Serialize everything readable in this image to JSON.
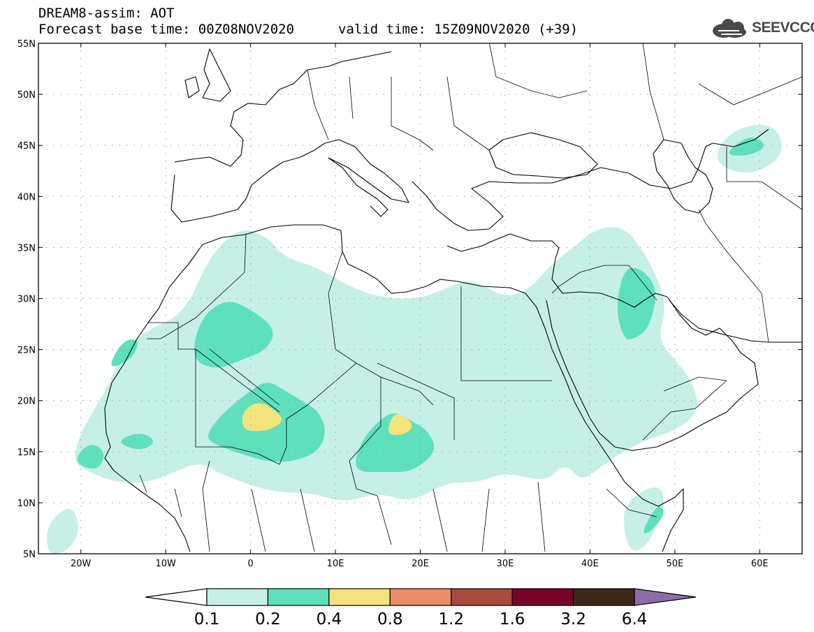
{
  "header": {
    "title": "DREAM8-assim: AOT",
    "base_time": "Forecast base time: 00Z08NOV2020",
    "valid_time": "valid time: 15Z09NOV2020 (+39)"
  },
  "logo": {
    "text": "SEEVCCC",
    "icon": "cloud-icon"
  },
  "map": {
    "lon_range": [
      -25,
      65
    ],
    "lat_range": [
      5,
      55
    ],
    "lat_ticks": [
      {
        "value": 55,
        "label": "55N"
      },
      {
        "value": 50,
        "label": "50N"
      },
      {
        "value": 45,
        "label": "45N"
      },
      {
        "value": 40,
        "label": "40N"
      },
      {
        "value": 35,
        "label": "35N"
      },
      {
        "value": 30,
        "label": "30N"
      },
      {
        "value": 25,
        "label": "25N"
      },
      {
        "value": 20,
        "label": "20N"
      },
      {
        "value": 15,
        "label": "15N"
      },
      {
        "value": 10,
        "label": "10N"
      },
      {
        "value": 5,
        "label": "5N"
      }
    ],
    "lon_ticks": [
      {
        "value": -20,
        "label": "20W"
      },
      {
        "value": -10,
        "label": "10W"
      },
      {
        "value": 0,
        "label": "0"
      },
      {
        "value": 10,
        "label": "10E"
      },
      {
        "value": 20,
        "label": "20E"
      },
      {
        "value": 30,
        "label": "30E"
      },
      {
        "value": 40,
        "label": "40E"
      },
      {
        "value": 50,
        "label": "50E"
      },
      {
        "value": 60,
        "label": "60E"
      }
    ],
    "grid": "dotted",
    "aot_regions": [
      {
        "level": "0.1-0.2",
        "color": "#c6f0e6",
        "outline": [
          [
            -20,
            17
          ],
          [
            -17,
            21
          ],
          [
            -15,
            25
          ],
          [
            -12,
            27
          ],
          [
            -9,
            28
          ],
          [
            -7,
            30
          ],
          [
            -6,
            32
          ],
          [
            -4,
            35
          ],
          [
            -1,
            37
          ],
          [
            2,
            36
          ],
          [
            4,
            34
          ],
          [
            8,
            33
          ],
          [
            12,
            31
          ],
          [
            16,
            30
          ],
          [
            20,
            30
          ],
          [
            23,
            31
          ],
          [
            26,
            32
          ],
          [
            30,
            30
          ],
          [
            33,
            31
          ],
          [
            35,
            33
          ],
          [
            38,
            35
          ],
          [
            41,
            37
          ],
          [
            44,
            37
          ],
          [
            46,
            35
          ],
          [
            48,
            32
          ],
          [
            49,
            29
          ],
          [
            48,
            26
          ],
          [
            50,
            24
          ],
          [
            52,
            22
          ],
          [
            53,
            19
          ],
          [
            50,
            17
          ],
          [
            46,
            16
          ],
          [
            42,
            14
          ],
          [
            39,
            12
          ],
          [
            37,
            14
          ],
          [
            35,
            12
          ],
          [
            30,
            13
          ],
          [
            27,
            12
          ],
          [
            23,
            12
          ],
          [
            19,
            10
          ],
          [
            15,
            11
          ],
          [
            11,
            10
          ],
          [
            7,
            11
          ],
          [
            3,
            11
          ],
          [
            -1,
            12
          ],
          [
            -4,
            13
          ],
          [
            -6,
            14
          ],
          [
            -9,
            13
          ],
          [
            -12,
            12
          ],
          [
            -16,
            12
          ],
          [
            -19,
            13
          ],
          [
            -21,
            14
          ]
        ]
      },
      {
        "level": "0.1-0.2",
        "color": "#c6f0e6",
        "outline": [
          [
            55,
            43
          ],
          [
            59,
            42
          ],
          [
            63,
            44
          ],
          [
            62,
            47
          ],
          [
            58,
            47
          ],
          [
            55,
            45
          ]
        ]
      },
      {
        "level": "0.1-0.2",
        "color": "#c6f0e6",
        "outline": [
          [
            -24,
            8
          ],
          [
            -21,
            10
          ],
          [
            -20,
            7
          ],
          [
            -22,
            5
          ],
          [
            -24,
            5
          ]
        ]
      },
      {
        "level": "0.1-0.2",
        "color": "#c6f0e6",
        "outline": [
          [
            44,
            10
          ],
          [
            48,
            12
          ],
          [
            49,
            10
          ],
          [
            47,
            6
          ],
          [
            45,
            5
          ],
          [
            44,
            7
          ]
        ]
      },
      {
        "level": "0.2-0.4",
        "color": "#5ee0bc",
        "outline": [
          [
            -7,
            24
          ],
          [
            -6,
            28
          ],
          [
            -3,
            30
          ],
          [
            0,
            29
          ],
          [
            3,
            27
          ],
          [
            2,
            25
          ],
          [
            -1,
            24
          ],
          [
            -4,
            23
          ]
        ]
      },
      {
        "level": "0.2-0.4",
        "color": "#5ee0bc",
        "outline": [
          [
            -5,
            17
          ],
          [
            -3,
            19
          ],
          [
            0,
            21
          ],
          [
            2,
            22
          ],
          [
            4,
            21
          ],
          [
            6,
            20
          ],
          [
            8,
            19
          ],
          [
            9,
            17
          ],
          [
            8,
            15
          ],
          [
            5,
            14
          ],
          [
            2,
            14
          ],
          [
            -2,
            15
          ],
          [
            -5,
            16
          ]
        ]
      },
      {
        "level": "0.2-0.4",
        "color": "#5ee0bc",
        "outline": [
          [
            12,
            13
          ],
          [
            13,
            16
          ],
          [
            15,
            18
          ],
          [
            17,
            19
          ],
          [
            19,
            18
          ],
          [
            21,
            17
          ],
          [
            22,
            15
          ],
          [
            19,
            13
          ],
          [
            16,
            13
          ]
        ]
      },
      {
        "level": "0.2-0.4",
        "color": "#5ee0bc",
        "outline": [
          [
            -17,
            23
          ],
          [
            -15,
            26
          ],
          [
            -13,
            26
          ],
          [
            -14,
            24
          ]
        ]
      },
      {
        "level": "0.2-0.4",
        "color": "#5ee0bc",
        "outline": [
          [
            -21,
            14
          ],
          [
            -19,
            16
          ],
          [
            -17,
            15
          ],
          [
            -18,
            13
          ]
        ]
      },
      {
        "level": "0.2-0.4",
        "color": "#5ee0bc",
        "outline": [
          [
            -16,
            16
          ],
          [
            -13,
            17
          ],
          [
            -11,
            16
          ],
          [
            -13,
            15
          ]
        ]
      },
      {
        "level": "0.2-0.4",
        "color": "#5ee0bc",
        "outline": [
          [
            44,
            26
          ],
          [
            43,
            29
          ],
          [
            44,
            33
          ],
          [
            46,
            33
          ],
          [
            48,
            31
          ],
          [
            47,
            27
          ],
          [
            45,
            26
          ]
        ]
      },
      {
        "level": "0.2-0.4",
        "color": "#5ee0bc",
        "outline": [
          [
            56,
            44
          ],
          [
            59,
            44
          ],
          [
            61,
            45
          ],
          [
            59,
            46
          ],
          [
            57,
            45
          ]
        ]
      },
      {
        "level": "0.2-0.4",
        "color": "#5ee0bc",
        "outline": [
          [
            46,
            7
          ],
          [
            48,
            10
          ],
          [
            49,
            9
          ],
          [
            47,
            7
          ]
        ]
      },
      {
        "level": "0.4-0.8",
        "color": "#f4e27a",
        "outline": [
          [
            -1,
            17
          ],
          [
            -1,
            19
          ],
          [
            1,
            20
          ],
          [
            3,
            19
          ],
          [
            4,
            18
          ],
          [
            2,
            17
          ]
        ]
      },
      {
        "level": "0.4-0.8",
        "color": "#f4e27a",
        "outline": [
          [
            16,
            17
          ],
          [
            17,
            19
          ],
          [
            19,
            18
          ],
          [
            19,
            17
          ],
          [
            17,
            16.5
          ]
        ]
      }
    ]
  },
  "colorbar": {
    "bins": [
      {
        "color": "#ffffff"
      },
      {
        "color": "#c6f0e6"
      },
      {
        "color": "#5ee0bc"
      },
      {
        "color": "#f4e27a"
      },
      {
        "color": "#ea8c68"
      },
      {
        "color": "#a84a3c"
      },
      {
        "color": "#7a0028"
      },
      {
        "color": "#3d2817"
      },
      {
        "color": "#8e6ca8"
      }
    ],
    "labels": [
      "0.1",
      "0.2",
      "0.4",
      "0.8",
      "1.2",
      "1.6",
      "3.2",
      "6.4"
    ]
  }
}
